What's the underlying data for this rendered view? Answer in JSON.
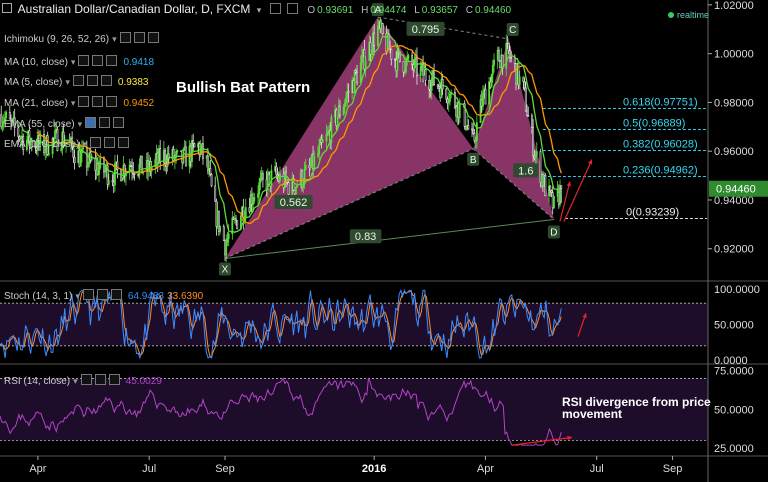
{
  "header": {
    "symbol_title": "Australian Dollar/Canadian Dollar, D, FXCM",
    "ohlc": [
      {
        "label": "O",
        "value": "0.93691"
      },
      {
        "label": "H",
        "value": "0.94474"
      },
      {
        "label": "L",
        "value": "0.93657"
      },
      {
        "label": "C",
        "value": "0.94460"
      }
    ],
    "realtime_label": "realtime"
  },
  "indicators": [
    {
      "label": "Ichimoku (9, 26, 52, 26)",
      "value": "",
      "color": "#cccccc"
    },
    {
      "label": "MA (10, close)",
      "value": "0.9418",
      "color": "#29b6f6"
    },
    {
      "label": "MA (5, close)",
      "value": "0.9383",
      "color": "#ffeb3b"
    },
    {
      "label": "MA (21, close)",
      "value": "0.9452",
      "color": "#ff9800"
    },
    {
      "label": "EMA (55, close)",
      "value": "",
      "color": "#cccccc"
    },
    {
      "label": "EMA (110, close)",
      "value": "",
      "color": "#cccccc"
    }
  ],
  "annotations": {
    "pattern_title": "Bullish Bat Pattern",
    "rsi_note": "RSI divergence from price movement",
    "points": [
      {
        "label": "X",
        "x": "2015-09-01",
        "y": 0.916
      },
      {
        "label": "A",
        "x": "2016-01-04",
        "y": 1.015
      },
      {
        "label": "B",
        "x": "2016-03-22",
        "y": 0.961
      },
      {
        "label": "C",
        "x": "2016-04-20",
        "y": 1.006
      },
      {
        "label": "D",
        "x": "2016-05-27",
        "y": 0.932
      }
    ],
    "ratios": [
      {
        "label": "0.562"
      },
      {
        "label": "0.795"
      },
      {
        "label": "1.6"
      },
      {
        "label": "0.83"
      }
    ],
    "fib_levels": [
      {
        "label": "0.618(0.97751)",
        "value": 0.97751
      },
      {
        "label": "0.5(0.96889)",
        "value": 0.96889
      },
      {
        "label": "0.382(0.96028)",
        "value": 0.96028
      },
      {
        "label": "0.236(0.94962)",
        "value": 0.94962
      },
      {
        "label": "0(0.93239)",
        "value": 0.93239
      }
    ]
  },
  "chart_data": [
    {
      "type": "candlestick",
      "pane": "price",
      "ylim": [
        0.908,
        1.022
      ],
      "y_ticks": [
        "1.02000",
        "1.00000",
        "0.98000",
        "0.96000",
        "0.94000",
        "0.92000"
      ],
      "y_tick_values": [
        1.02,
        1.0,
        0.98,
        0.96,
        0.94,
        0.92
      ],
      "last_price_label": "0.94460",
      "last_price": 0.9446,
      "x_ticks": [
        "Apr",
        "Jul",
        "Sep",
        "2016",
        "Apr",
        "Jul",
        "Sep"
      ],
      "x_tick_dates": [
        "2015-04-01",
        "2015-07-01",
        "2015-09-01",
        "2016-01-01",
        "2016-04-01",
        "2016-07-01",
        "2016-09-01"
      ],
      "xlim": [
        "2015-03-01",
        "2016-09-30"
      ],
      "close_path": [
        [
          "2015-03-02",
          0.975
        ],
        [
          "2015-03-20",
          0.965
        ],
        [
          "2015-04-06",
          0.962
        ],
        [
          "2015-04-20",
          0.966
        ],
        [
          "2015-05-04",
          0.958
        ],
        [
          "2015-05-18",
          0.954
        ],
        [
          "2015-06-01",
          0.95
        ],
        [
          "2015-06-15",
          0.955
        ],
        [
          "2015-06-29",
          0.952
        ],
        [
          "2015-07-13",
          0.958
        ],
        [
          "2015-07-27",
          0.956
        ],
        [
          "2015-08-10",
          0.962
        ],
        [
          "2015-08-17",
          0.955
        ],
        [
          "2015-08-24",
          0.935
        ],
        [
          "2015-09-01",
          0.922
        ],
        [
          "2015-09-14",
          0.935
        ],
        [
          "2015-09-28",
          0.945
        ],
        [
          "2015-10-12",
          0.95
        ],
        [
          "2015-10-26",
          0.945
        ],
        [
          "2015-11-09",
          0.952
        ],
        [
          "2015-11-23",
          0.965
        ],
        [
          "2015-12-07",
          0.98
        ],
        [
          "2015-12-21",
          0.995
        ],
        [
          "2016-01-04",
          1.01
        ],
        [
          "2016-01-18",
          0.998
        ],
        [
          "2016-02-01",
          0.995
        ],
        [
          "2016-02-15",
          0.99
        ],
        [
          "2016-02-29",
          0.985
        ],
        [
          "2016-03-14",
          0.975
        ],
        [
          "2016-03-22",
          0.963
        ],
        [
          "2016-03-29",
          0.98
        ],
        [
          "2016-04-11",
          0.998
        ],
        [
          "2016-04-20",
          1.0
        ],
        [
          "2016-05-02",
          0.985
        ],
        [
          "2016-05-11",
          0.96
        ],
        [
          "2016-05-20",
          0.945
        ],
        [
          "2016-05-27",
          0.937
        ],
        [
          "2016-06-02",
          0.9446
        ]
      ]
    },
    {
      "type": "line",
      "pane": "stochastic",
      "title": "Stoch (14, 3, 1)",
      "values_shown": [
        "64.9483",
        "33.6390"
      ],
      "ylim": [
        0,
        100
      ],
      "y_ticks": [
        "100.0000",
        "50.0000",
        "0.0000"
      ],
      "y_tick_values": [
        100,
        50,
        0
      ],
      "levels": [
        80,
        20
      ],
      "series": [
        {
          "name": "%K",
          "color": "#3b8cff"
        },
        {
          "name": "%D",
          "color": "#ff8a2a"
        }
      ]
    },
    {
      "type": "line",
      "pane": "rsi",
      "title": "RSI (14, close)",
      "values_shown": [
        "45.0029"
      ],
      "ylim": [
        20,
        78
      ],
      "y_ticks": [
        "75.0000",
        "50.0000",
        "25.0000"
      ],
      "y_tick_values": [
        75,
        50,
        25
      ],
      "levels": [
        70,
        30
      ],
      "series": [
        {
          "name": "RSI",
          "color": "#b344c8"
        }
      ]
    }
  ]
}
